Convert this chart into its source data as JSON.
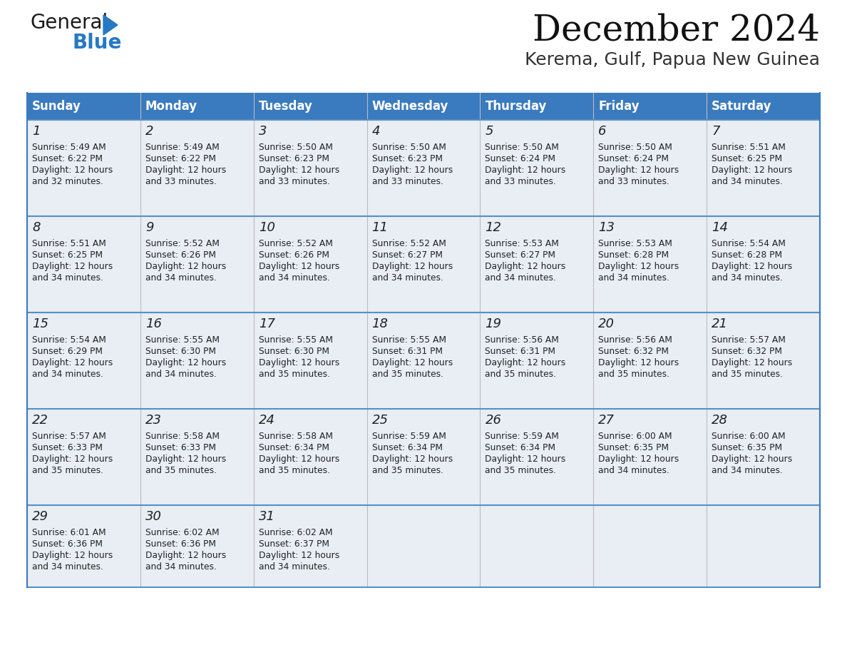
{
  "title": "December 2024",
  "subtitle": "Kerema, Gulf, Papua New Guinea",
  "header_color": "#3a7abf",
  "header_text_color": "#ffffff",
  "cell_bg_color": "#e8eef4",
  "border_color": "#3a7abf",
  "row_sep_color": "#5590c8",
  "col_sep_color": "#bbbbbb",
  "day_names": [
    "Sunday",
    "Monday",
    "Tuesday",
    "Wednesday",
    "Thursday",
    "Friday",
    "Saturday"
  ],
  "weeks": [
    [
      {
        "day": 1,
        "sunrise": "5:49 AM",
        "sunset": "6:22 PM",
        "daylight": "12 hours and 32 minutes"
      },
      {
        "day": 2,
        "sunrise": "5:49 AM",
        "sunset": "6:22 PM",
        "daylight": "12 hours and 33 minutes"
      },
      {
        "day": 3,
        "sunrise": "5:50 AM",
        "sunset": "6:23 PM",
        "daylight": "12 hours and 33 minutes"
      },
      {
        "day": 4,
        "sunrise": "5:50 AM",
        "sunset": "6:23 PM",
        "daylight": "12 hours and 33 minutes"
      },
      {
        "day": 5,
        "sunrise": "5:50 AM",
        "sunset": "6:24 PM",
        "daylight": "12 hours and 33 minutes"
      },
      {
        "day": 6,
        "sunrise": "5:50 AM",
        "sunset": "6:24 PM",
        "daylight": "12 hours and 33 minutes"
      },
      {
        "day": 7,
        "sunrise": "5:51 AM",
        "sunset": "6:25 PM",
        "daylight": "12 hours and 34 minutes"
      }
    ],
    [
      {
        "day": 8,
        "sunrise": "5:51 AM",
        "sunset": "6:25 PM",
        "daylight": "12 hours and 34 minutes"
      },
      {
        "day": 9,
        "sunrise": "5:52 AM",
        "sunset": "6:26 PM",
        "daylight": "12 hours and 34 minutes"
      },
      {
        "day": 10,
        "sunrise": "5:52 AM",
        "sunset": "6:26 PM",
        "daylight": "12 hours and 34 minutes"
      },
      {
        "day": 11,
        "sunrise": "5:52 AM",
        "sunset": "6:27 PM",
        "daylight": "12 hours and 34 minutes"
      },
      {
        "day": 12,
        "sunrise": "5:53 AM",
        "sunset": "6:27 PM",
        "daylight": "12 hours and 34 minutes"
      },
      {
        "day": 13,
        "sunrise": "5:53 AM",
        "sunset": "6:28 PM",
        "daylight": "12 hours and 34 minutes"
      },
      {
        "day": 14,
        "sunrise": "5:54 AM",
        "sunset": "6:28 PM",
        "daylight": "12 hours and 34 minutes"
      }
    ],
    [
      {
        "day": 15,
        "sunrise": "5:54 AM",
        "sunset": "6:29 PM",
        "daylight": "12 hours and 34 minutes"
      },
      {
        "day": 16,
        "sunrise": "5:55 AM",
        "sunset": "6:30 PM",
        "daylight": "12 hours and 34 minutes"
      },
      {
        "day": 17,
        "sunrise": "5:55 AM",
        "sunset": "6:30 PM",
        "daylight": "12 hours and 35 minutes"
      },
      {
        "day": 18,
        "sunrise": "5:55 AM",
        "sunset": "6:31 PM",
        "daylight": "12 hours and 35 minutes"
      },
      {
        "day": 19,
        "sunrise": "5:56 AM",
        "sunset": "6:31 PM",
        "daylight": "12 hours and 35 minutes"
      },
      {
        "day": 20,
        "sunrise": "5:56 AM",
        "sunset": "6:32 PM",
        "daylight": "12 hours and 35 minutes"
      },
      {
        "day": 21,
        "sunrise": "5:57 AM",
        "sunset": "6:32 PM",
        "daylight": "12 hours and 35 minutes"
      }
    ],
    [
      {
        "day": 22,
        "sunrise": "5:57 AM",
        "sunset": "6:33 PM",
        "daylight": "12 hours and 35 minutes"
      },
      {
        "day": 23,
        "sunrise": "5:58 AM",
        "sunset": "6:33 PM",
        "daylight": "12 hours and 35 minutes"
      },
      {
        "day": 24,
        "sunrise": "5:58 AM",
        "sunset": "6:34 PM",
        "daylight": "12 hours and 35 minutes"
      },
      {
        "day": 25,
        "sunrise": "5:59 AM",
        "sunset": "6:34 PM",
        "daylight": "12 hours and 35 minutes"
      },
      {
        "day": 26,
        "sunrise": "5:59 AM",
        "sunset": "6:34 PM",
        "daylight": "12 hours and 35 minutes"
      },
      {
        "day": 27,
        "sunrise": "6:00 AM",
        "sunset": "6:35 PM",
        "daylight": "12 hours and 34 minutes"
      },
      {
        "day": 28,
        "sunrise": "6:00 AM",
        "sunset": "6:35 PM",
        "daylight": "12 hours and 34 minutes"
      }
    ],
    [
      {
        "day": 29,
        "sunrise": "6:01 AM",
        "sunset": "6:36 PM",
        "daylight": "12 hours and 34 minutes"
      },
      {
        "day": 30,
        "sunrise": "6:02 AM",
        "sunset": "6:36 PM",
        "daylight": "12 hours and 34 minutes"
      },
      {
        "day": 31,
        "sunrise": "6:02 AM",
        "sunset": "6:37 PM",
        "daylight": "12 hours and 34 minutes"
      },
      null,
      null,
      null,
      null
    ]
  ],
  "logo_general_color": "#1a1a1a",
  "logo_blue_color": "#2878c3",
  "logo_triangle_color": "#2878c3",
  "fig_width": 11.88,
  "fig_height": 9.18,
  "dpi": 100
}
